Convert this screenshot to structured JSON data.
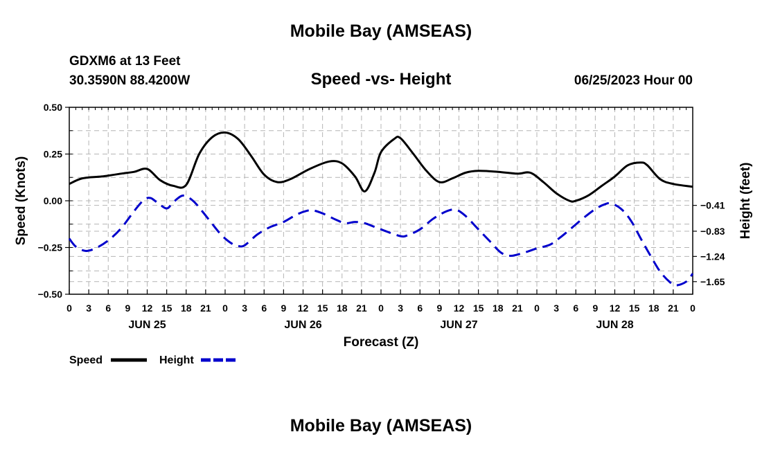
{
  "header": {
    "title": "Mobile Bay (AMSEAS)",
    "station": "GDXM6 at 13 Feet",
    "coords": "30.3590N  88.4200W",
    "subtitle": "Speed -vs- Height",
    "datetime": "06/25/2023 Hour 00"
  },
  "footer": {
    "title": "Mobile Bay (AMSEAS)"
  },
  "legend": {
    "items": [
      {
        "label": "Speed",
        "color": "#000000",
        "style": "solid"
      },
      {
        "label": "Height",
        "color": "#0000cc",
        "style": "dashed"
      }
    ]
  },
  "chart_data": {
    "type": "line",
    "title": "Speed -vs- Height",
    "xlabel": "Forecast (Z)",
    "ylabel": "Speed (Knots)",
    "y2label": "Height (feet)",
    "xlim": [
      0,
      96
    ],
    "ylim": [
      -0.5,
      0.5
    ],
    "y2lim": [
      -1.855,
      1.185
    ],
    "yticks": [
      "0.50",
      "0.25",
      "0.00",
      "−0.25",
      "−0.50"
    ],
    "yticks_values": [
      0.5,
      0.25,
      0.0,
      -0.25,
      -0.5
    ],
    "y2ticks": [
      "−0.41",
      "−0.83",
      "−1.24",
      "−1.65"
    ],
    "y2ticks_values": [
      -0.41,
      -0.83,
      -1.24,
      -1.65
    ],
    "xtick_hours": [
      0,
      3,
      6,
      9,
      12,
      15,
      18,
      21,
      24,
      27,
      30,
      33,
      36,
      39,
      42,
      45,
      48,
      51,
      54,
      57,
      60,
      63,
      66,
      69,
      72,
      75,
      78,
      81,
      84,
      87,
      90,
      93,
      96
    ],
    "xtick_labels": [
      "0",
      "3",
      "6",
      "9",
      "12",
      "15",
      "18",
      "21",
      "0",
      "3",
      "6",
      "9",
      "12",
      "15",
      "18",
      "21",
      "0",
      "3",
      "6",
      "9",
      "12",
      "15",
      "18",
      "21",
      "0",
      "3",
      "6",
      "9",
      "12",
      "15",
      "18",
      "21",
      "0"
    ],
    "date_labels": [
      {
        "hour": 12,
        "label": "JUN 25"
      },
      {
        "hour": 36,
        "label": "JUN 26"
      },
      {
        "hour": 60,
        "label": "JUN 27"
      },
      {
        "hour": 84,
        "label": "JUN 28"
      }
    ],
    "grid": true,
    "series": [
      {
        "name": "Speed",
        "axis": "left",
        "color": "#000000",
        "style": "solid",
        "points": [
          [
            0,
            0.09
          ],
          [
            2,
            0.12
          ],
          [
            5,
            0.13
          ],
          [
            8,
            0.145
          ],
          [
            10,
            0.155
          ],
          [
            12,
            0.17
          ],
          [
            14,
            0.11
          ],
          [
            16,
            0.08
          ],
          [
            18,
            0.085
          ],
          [
            20,
            0.25
          ],
          [
            22,
            0.34
          ],
          [
            24,
            0.365
          ],
          [
            26,
            0.33
          ],
          [
            28,
            0.24
          ],
          [
            30,
            0.14
          ],
          [
            32,
            0.1
          ],
          [
            34,
            0.115
          ],
          [
            37,
            0.17
          ],
          [
            40,
            0.21
          ],
          [
            42,
            0.2
          ],
          [
            44,
            0.13
          ],
          [
            45.5,
            0.05
          ],
          [
            47,
            0.15
          ],
          [
            48,
            0.26
          ],
          [
            50,
            0.33
          ],
          [
            51,
            0.335
          ],
          [
            53,
            0.25
          ],
          [
            55,
            0.16
          ],
          [
            57,
            0.1
          ],
          [
            59,
            0.12
          ],
          [
            61,
            0.15
          ],
          [
            63,
            0.16
          ],
          [
            66,
            0.155
          ],
          [
            69,
            0.145
          ],
          [
            71,
            0.15
          ],
          [
            73,
            0.1
          ],
          [
            75,
            0.04
          ],
          [
            77,
            0.0
          ],
          [
            78,
            0.0
          ],
          [
            80,
            0.03
          ],
          [
            82,
            0.08
          ],
          [
            84,
            0.13
          ],
          [
            86,
            0.19
          ],
          [
            88,
            0.205
          ],
          [
            89,
            0.19
          ],
          [
            91,
            0.115
          ],
          [
            93,
            0.09
          ],
          [
            96,
            0.075
          ]
        ]
      },
      {
        "name": "Height",
        "axis": "right",
        "color": "#0000cc",
        "style": "dashed",
        "points": [
          [
            0,
            -0.95
          ],
          [
            1,
            -1.08
          ],
          [
            2.5,
            -1.15
          ],
          [
            4,
            -1.11
          ],
          [
            6,
            -0.98
          ],
          [
            8,
            -0.78
          ],
          [
            10,
            -0.5
          ],
          [
            11.5,
            -0.32
          ],
          [
            12.5,
            -0.29
          ],
          [
            13.5,
            -0.36
          ],
          [
            15,
            -0.46
          ],
          [
            16,
            -0.36
          ],
          [
            17.5,
            -0.25
          ],
          [
            19,
            -0.33
          ],
          [
            20.5,
            -0.51
          ],
          [
            22,
            -0.71
          ],
          [
            23.5,
            -0.9
          ],
          [
            25,
            -1.03
          ],
          [
            26,
            -1.07
          ],
          [
            27,
            -1.06
          ],
          [
            29,
            -0.88
          ],
          [
            31,
            -0.76
          ],
          [
            33,
            -0.68
          ],
          [
            35,
            -0.56
          ],
          [
            36.5,
            -0.5
          ],
          [
            37.5,
            -0.49
          ],
          [
            39,
            -0.54
          ],
          [
            41,
            -0.64
          ],
          [
            42.5,
            -0.7
          ],
          [
            44,
            -0.68
          ],
          [
            45.5,
            -0.7
          ],
          [
            47,
            -0.76
          ],
          [
            49,
            -0.84
          ],
          [
            51,
            -0.91
          ],
          [
            52,
            -0.9
          ],
          [
            54,
            -0.8
          ],
          [
            56,
            -0.63
          ],
          [
            58,
            -0.51
          ],
          [
            59.5,
            -0.48
          ],
          [
            61,
            -0.58
          ],
          [
            63,
            -0.8
          ],
          [
            65,
            -1.02
          ],
          [
            66.5,
            -1.18
          ],
          [
            68,
            -1.23
          ],
          [
            70,
            -1.18
          ],
          [
            72,
            -1.11
          ],
          [
            74,
            -1.05
          ],
          [
            75.5,
            -0.94
          ],
          [
            77,
            -0.81
          ],
          [
            79,
            -0.63
          ],
          [
            81,
            -0.47
          ],
          [
            82.5,
            -0.39
          ],
          [
            83.5,
            -0.38
          ],
          [
            85,
            -0.47
          ],
          [
            86.5,
            -0.66
          ],
          [
            88,
            -0.95
          ],
          [
            89.5,
            -1.23
          ],
          [
            91,
            -1.49
          ],
          [
            92.5,
            -1.66
          ],
          [
            93.5,
            -1.71
          ],
          [
            95,
            -1.65
          ],
          [
            96,
            -1.52
          ]
        ]
      }
    ]
  }
}
